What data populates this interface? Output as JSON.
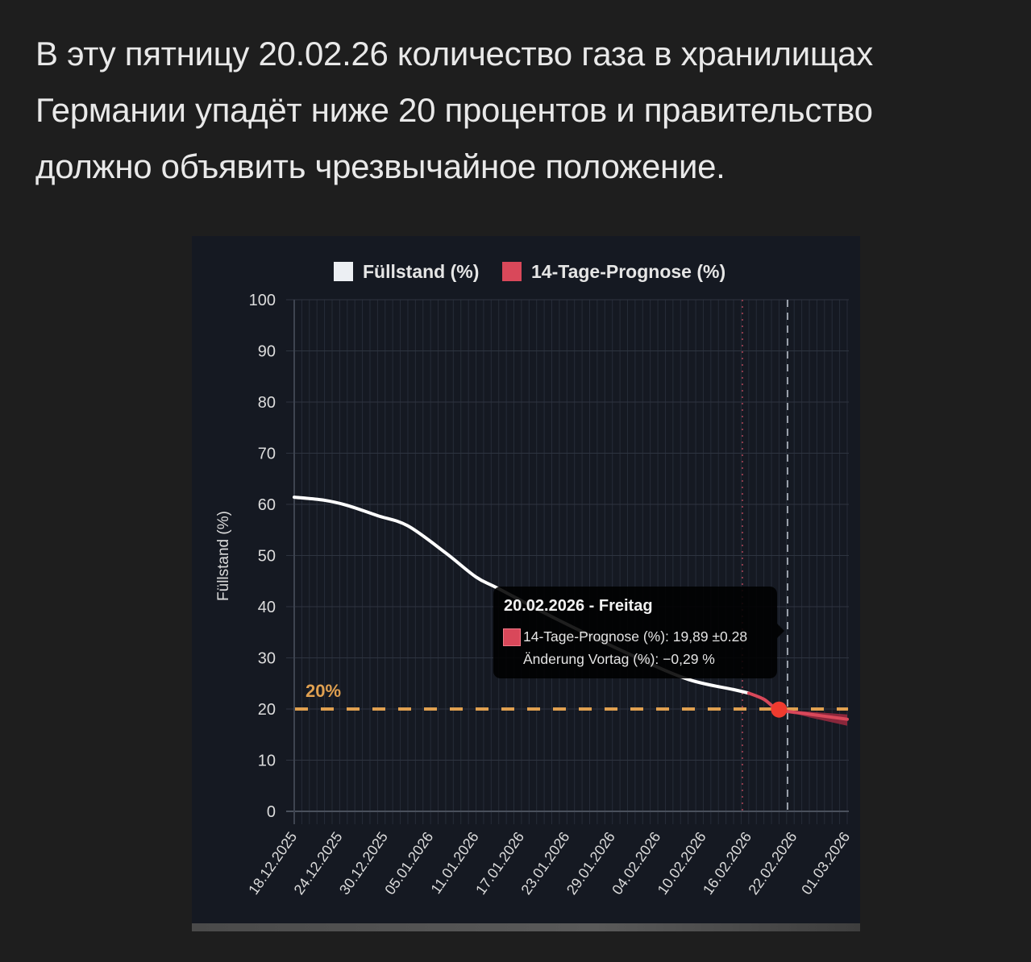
{
  "headline": {
    "line1": "В эту пятницу 20.02.26 количество газа в хранилищах",
    "line2": "Германии упадёт ниже 20 процентов и правительство",
    "line3": "должно объявить чрезвычайное положение."
  },
  "colors": {
    "page_bg": "#1e1e1e",
    "chart_bg": "#151922",
    "actual_line": "#ffffff",
    "forecast_line": "#d9485a",
    "threshold_line": "#e0a050",
    "marker": "#ef3b2f",
    "today_line": "#8a3a4a",
    "cursor_line": "#9aa0aa"
  },
  "legend": {
    "items": [
      {
        "label": "Füllstand (%)",
        "color": "#eceff3"
      },
      {
        "label": "14-Tage-Prognose (%)",
        "color": "#d9485a"
      }
    ]
  },
  "axis": {
    "ylabel": "Füllstand (%)",
    "yticks": [
      "100",
      "90",
      "80",
      "70",
      "60",
      "50",
      "40",
      "30",
      "20",
      "10",
      "0"
    ],
    "xticks": [
      "18.12.2025",
      "24.12.2025",
      "30.12.2025",
      "05.01.2026",
      "11.01.2026",
      "17.01.2026",
      "23.01.2026",
      "29.01.2026",
      "04.02.2026",
      "10.02.2026",
      "16.02.2026",
      "22.02.2026",
      "01.03.2026"
    ]
  },
  "threshold": {
    "label": "20%",
    "value": 20
  },
  "tooltip": {
    "title": "20.02.2026 - Freitag",
    "row1": "14-Tage-Prognose (%): 19,89 ±0.28",
    "row2": "Änderung Vortag (%): −0,29 %"
  },
  "chart_data": {
    "type": "line",
    "title": "",
    "xlabel": "",
    "ylabel": "Füllstand (%)",
    "ylim": [
      0,
      100
    ],
    "grid": true,
    "legend_position": "top",
    "x_range": [
      "18.12.2025",
      "01.03.2026"
    ],
    "series": [
      {
        "name": "Füllstand (%)",
        "x": [
          "18.12.2025",
          "22.12.2025",
          "25.12.2025",
          "29.12.2025",
          "02.01.2026",
          "07.01.2026",
          "11.01.2026",
          "14.01.2026",
          "22.01.2026",
          "01.02.2026",
          "08.02.2026",
          "14.02.2026",
          "16.02.2026"
        ],
        "values": [
          61.4,
          60.8,
          59.8,
          57.8,
          55.8,
          50.5,
          45.8,
          43.5,
          37.3,
          30.2,
          25.8,
          23.8,
          23.1
        ]
      },
      {
        "name": "14-Tage-Prognose (%)",
        "x": [
          "16.02.2026",
          "18.02.2026",
          "20.02.2026",
          "24.02.2026",
          "01.03.2026"
        ],
        "values": [
          23.1,
          21.9,
          19.89,
          19.0,
          18.0
        ]
      }
    ],
    "annotations": [
      {
        "type": "hline",
        "y": 20,
        "label": "20%",
        "style": "dashed",
        "color": "#e0a050"
      },
      {
        "type": "vline",
        "x": "16.02.2026",
        "style": "dotted",
        "color": "#8a3a4a"
      },
      {
        "type": "vline",
        "x": "20.02.2026",
        "style": "dashed",
        "color": "#9aa0aa"
      },
      {
        "type": "point",
        "x": "20.02.2026",
        "y": 19.89,
        "color": "#ef3b2f"
      },
      {
        "type": "tooltip",
        "x": "20.02.2026",
        "text": [
          "20.02.2026 - Freitag",
          "14-Tage-Prognose (%): 19,89 ±0.28",
          "Änderung Vortag (%): −0,29 %"
        ]
      }
    ]
  }
}
